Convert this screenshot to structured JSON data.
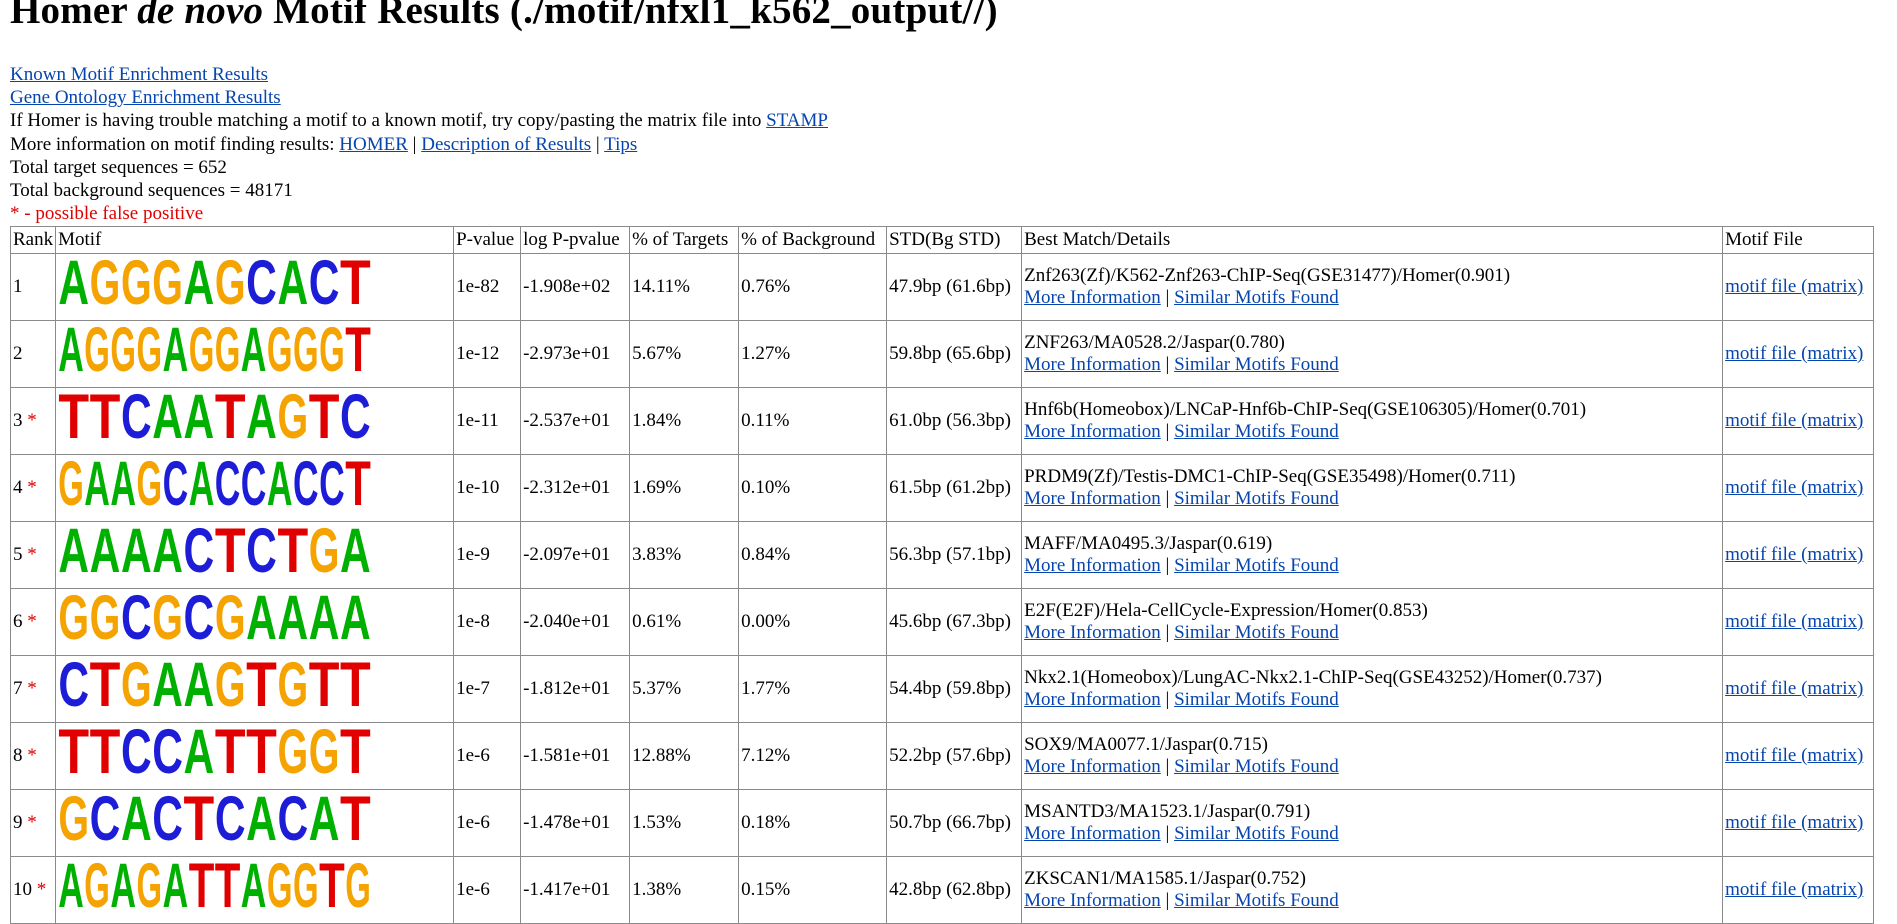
{
  "header": {
    "title_pre": "Homer ",
    "title_it": "de novo",
    "title_post": " Motif Results (./motif/nfxl1_k562_output//)"
  },
  "links": {
    "known": "Known Motif Enrichment Results",
    "go": "Gene Ontology Enrichment Results"
  },
  "info": {
    "stamp_text": "If Homer is having trouble matching a motif to a known motif, try copy/pasting the matrix file into ",
    "stamp_link": "STAMP",
    "more_text": "More information on motif finding results: ",
    "homer_link": "HOMER",
    "sep": " | ",
    "desc_link": "Description of Results",
    "tips_link": "Tips",
    "total_target": "Total target sequences = 652",
    "total_bg": "Total background sequences = 48171",
    "fp_note": "* - possible false positive"
  },
  "table": {
    "headers": [
      "Rank",
      "Motif",
      "P-value",
      "log P-pvalue",
      "% of Targets",
      "% of Background",
      "STD(Bg STD)",
      "Best Match/Details",
      "Motif File"
    ],
    "more_info": "More Information",
    "similar": "Similar Motifs Found",
    "motif_file": "motif file (matrix)",
    "rows": [
      {
        "rank": "1",
        "star": "",
        "seq": "AGGGAGCACT",
        "p": "1e-82",
        "logp": "-1.908e+02",
        "tgt": "14.11%",
        "bg": "0.76%",
        "std": "47.9bp (61.6bp)",
        "match": "Znf263(Zf)/K562-Znf263-ChIP-Seq(GSE31477)/Homer(0.901)"
      },
      {
        "rank": "2",
        "star": "",
        "seq": "AGGGAGGAGGGT",
        "p": "1e-12",
        "logp": "-2.973e+01",
        "tgt": "5.67%",
        "bg": "1.27%",
        "std": "59.8bp (65.6bp)",
        "match": "ZNF263/MA0528.2/Jaspar(0.780)"
      },
      {
        "rank": "3",
        "star": "*",
        "seq": "TTCAATAGTC",
        "p": "1e-11",
        "logp": "-2.537e+01",
        "tgt": "1.84%",
        "bg": "0.11%",
        "std": "61.0bp (56.3bp)",
        "match": "Hnf6b(Homeobox)/LNCaP-Hnf6b-ChIP-Seq(GSE106305)/Homer(0.701)"
      },
      {
        "rank": "4",
        "star": "*",
        "seq": "GAAGCACCACCT",
        "p": "1e-10",
        "logp": "-2.312e+01",
        "tgt": "1.69%",
        "bg": "0.10%",
        "std": "61.5bp (61.2bp)",
        "match": "PRDM9(Zf)/Testis-DMC1-ChIP-Seq(GSE35498)/Homer(0.711)"
      },
      {
        "rank": "5",
        "star": "*",
        "seq": "AAAACTCTGA",
        "p": "1e-9",
        "logp": "-2.097e+01",
        "tgt": "3.83%",
        "bg": "0.84%",
        "std": "56.3bp (57.1bp)",
        "match": "MAFF/MA0495.3/Jaspar(0.619)"
      },
      {
        "rank": "6",
        "star": "*",
        "seq": "GGCGCGAAAA",
        "p": "1e-8",
        "logp": "-2.040e+01",
        "tgt": "0.61%",
        "bg": "0.00%",
        "std": "45.6bp (67.3bp)",
        "match": "E2F(E2F)/Hela-CellCycle-Expression/Homer(0.853)"
      },
      {
        "rank": "7",
        "star": "*",
        "seq": "CTGAAGTGTT",
        "p": "1e-7",
        "logp": "-1.812e+01",
        "tgt": "5.37%",
        "bg": "1.77%",
        "std": "54.4bp (59.8bp)",
        "match": "Nkx2.1(Homeobox)/LungAC-Nkx2.1-ChIP-Seq(GSE43252)/Homer(0.737)"
      },
      {
        "rank": "8",
        "star": "*",
        "seq": "TTCCATTGGT",
        "p": "1e-6",
        "logp": "-1.581e+01",
        "tgt": "12.88%",
        "bg": "7.12%",
        "std": "52.2bp (57.6bp)",
        "match": "SOX9/MA0077.1/Jaspar(0.715)"
      },
      {
        "rank": "9",
        "star": "*",
        "seq": "GCACTCACAT",
        "p": "1e-6",
        "logp": "-1.478e+01",
        "tgt": "1.53%",
        "bg": "0.18%",
        "std": "50.7bp (66.7bp)",
        "match": "MSANTD3/MA1523.1/Jaspar(0.791)"
      },
      {
        "rank": "10",
        "star": "*",
        "seq": "AGAGATTAGGTG",
        "p": "1e-6",
        "logp": "-1.417e+01",
        "tgt": "1.38%",
        "bg": "0.15%",
        "std": "42.8bp (62.8bp)",
        "match": "ZKSCAN1/MA1585.1/Jaspar(0.752)"
      }
    ]
  },
  "colors": {
    "A": "#00b000",
    "C": "#1d1dd8",
    "G": "#f5a300",
    "T": "#e00000",
    "link": "#0645ad",
    "star": "#e00000"
  }
}
